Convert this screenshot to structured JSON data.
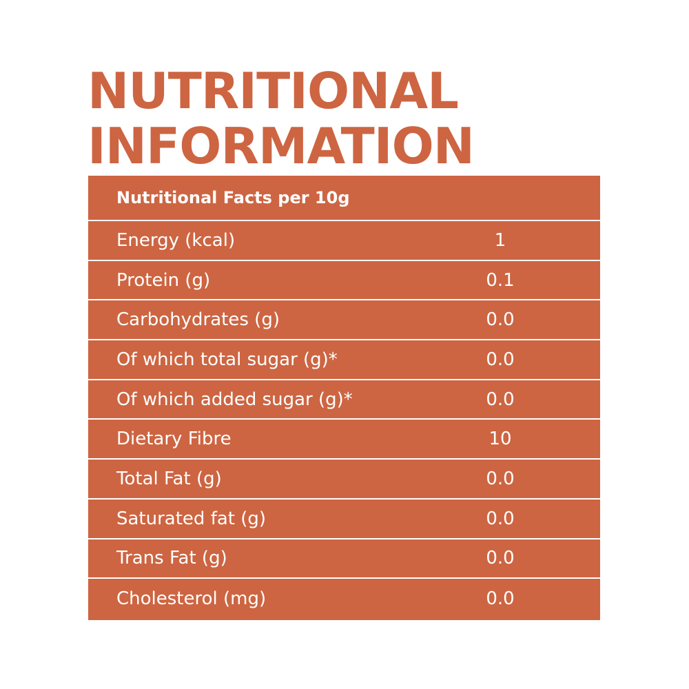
{
  "heading": {
    "line1": "NUTRITIONAL",
    "line2": "INFORMATION"
  },
  "table": {
    "header": "Nutritional Facts per 10g",
    "rows": [
      {
        "label": "Energy (kcal)",
        "value": "1"
      },
      {
        "label": "Protein (g)",
        "value": "0.1"
      },
      {
        "label": "Carbohydrates (g)",
        "value": "0.0"
      },
      {
        "label": "Of which total sugar (g)*",
        "value": "0.0"
      },
      {
        "label": "Of which added sugar (g)*",
        "value": "0.0"
      },
      {
        "label": "Dietary Fibre",
        "value": "10"
      },
      {
        "label": "Total Fat (g)",
        "value": "0.0"
      },
      {
        "label": "Saturated fat (g)",
        "value": "0.0"
      },
      {
        "label": "Trans Fat (g)",
        "value": "0.0"
      },
      {
        "label": "Cholesterol (mg)",
        "value": "0.0"
      }
    ]
  },
  "colors": {
    "accent": "#cd6542",
    "text_on_accent": "#ffffff",
    "background": "#ffffff"
  }
}
